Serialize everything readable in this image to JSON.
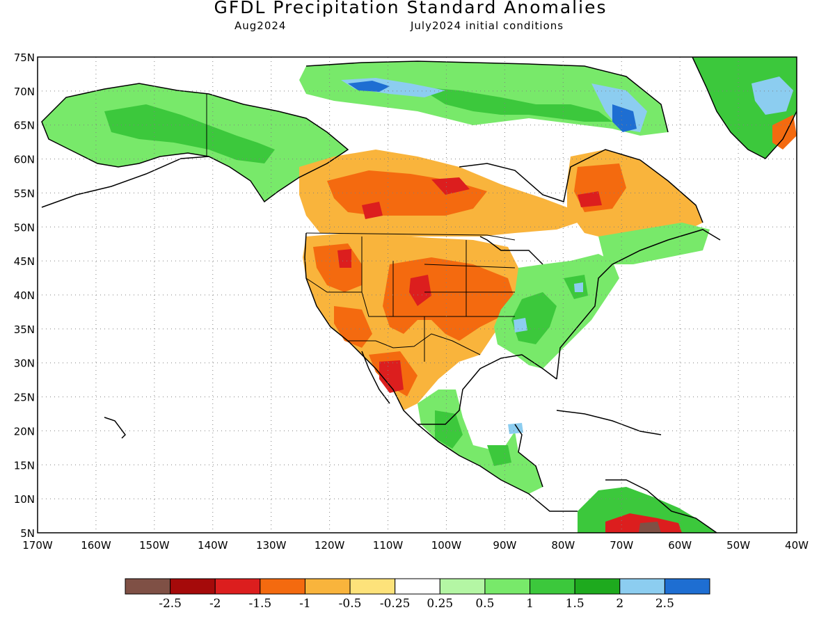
{
  "title": "GFDL Precipitation Standard Anomalies",
  "valid_label": "Aug2024",
  "init_label": "July2024 initial conditions",
  "map": {
    "lon_min": -170,
    "lon_max": -40,
    "lat_min": 5,
    "lat_max": 75,
    "lat_ticks": [
      "75N",
      "70N",
      "65N",
      "60N",
      "55N",
      "50N",
      "45N",
      "40N",
      "35N",
      "30N",
      "25N",
      "20N",
      "15N",
      "10N",
      "5N"
    ],
    "lon_ticks": [
      "170W",
      "160W",
      "150W",
      "140W",
      "130W",
      "120W",
      "110W",
      "100W",
      "90W",
      "80W",
      "70W",
      "60W",
      "50W",
      "40W"
    ],
    "grid": "dotted"
  },
  "colorbar": {
    "colors": [
      "#7f5045",
      "#a50a0a",
      "#dc1e1e",
      "#f46a0f",
      "#f9b43c",
      "#fde27a",
      "#ffffff",
      "#b4f6a4",
      "#78e96a",
      "#3cc83c",
      "#1eaa1e",
      "#8ccdf0",
      "#1e6ed2"
    ],
    "labels": [
      "-2.5",
      "-2",
      "-1.5",
      "-1",
      "-0.5",
      "-0.25",
      "0.25",
      "0.5",
      "1",
      "1.5",
      "2",
      "2.5"
    ]
  }
}
